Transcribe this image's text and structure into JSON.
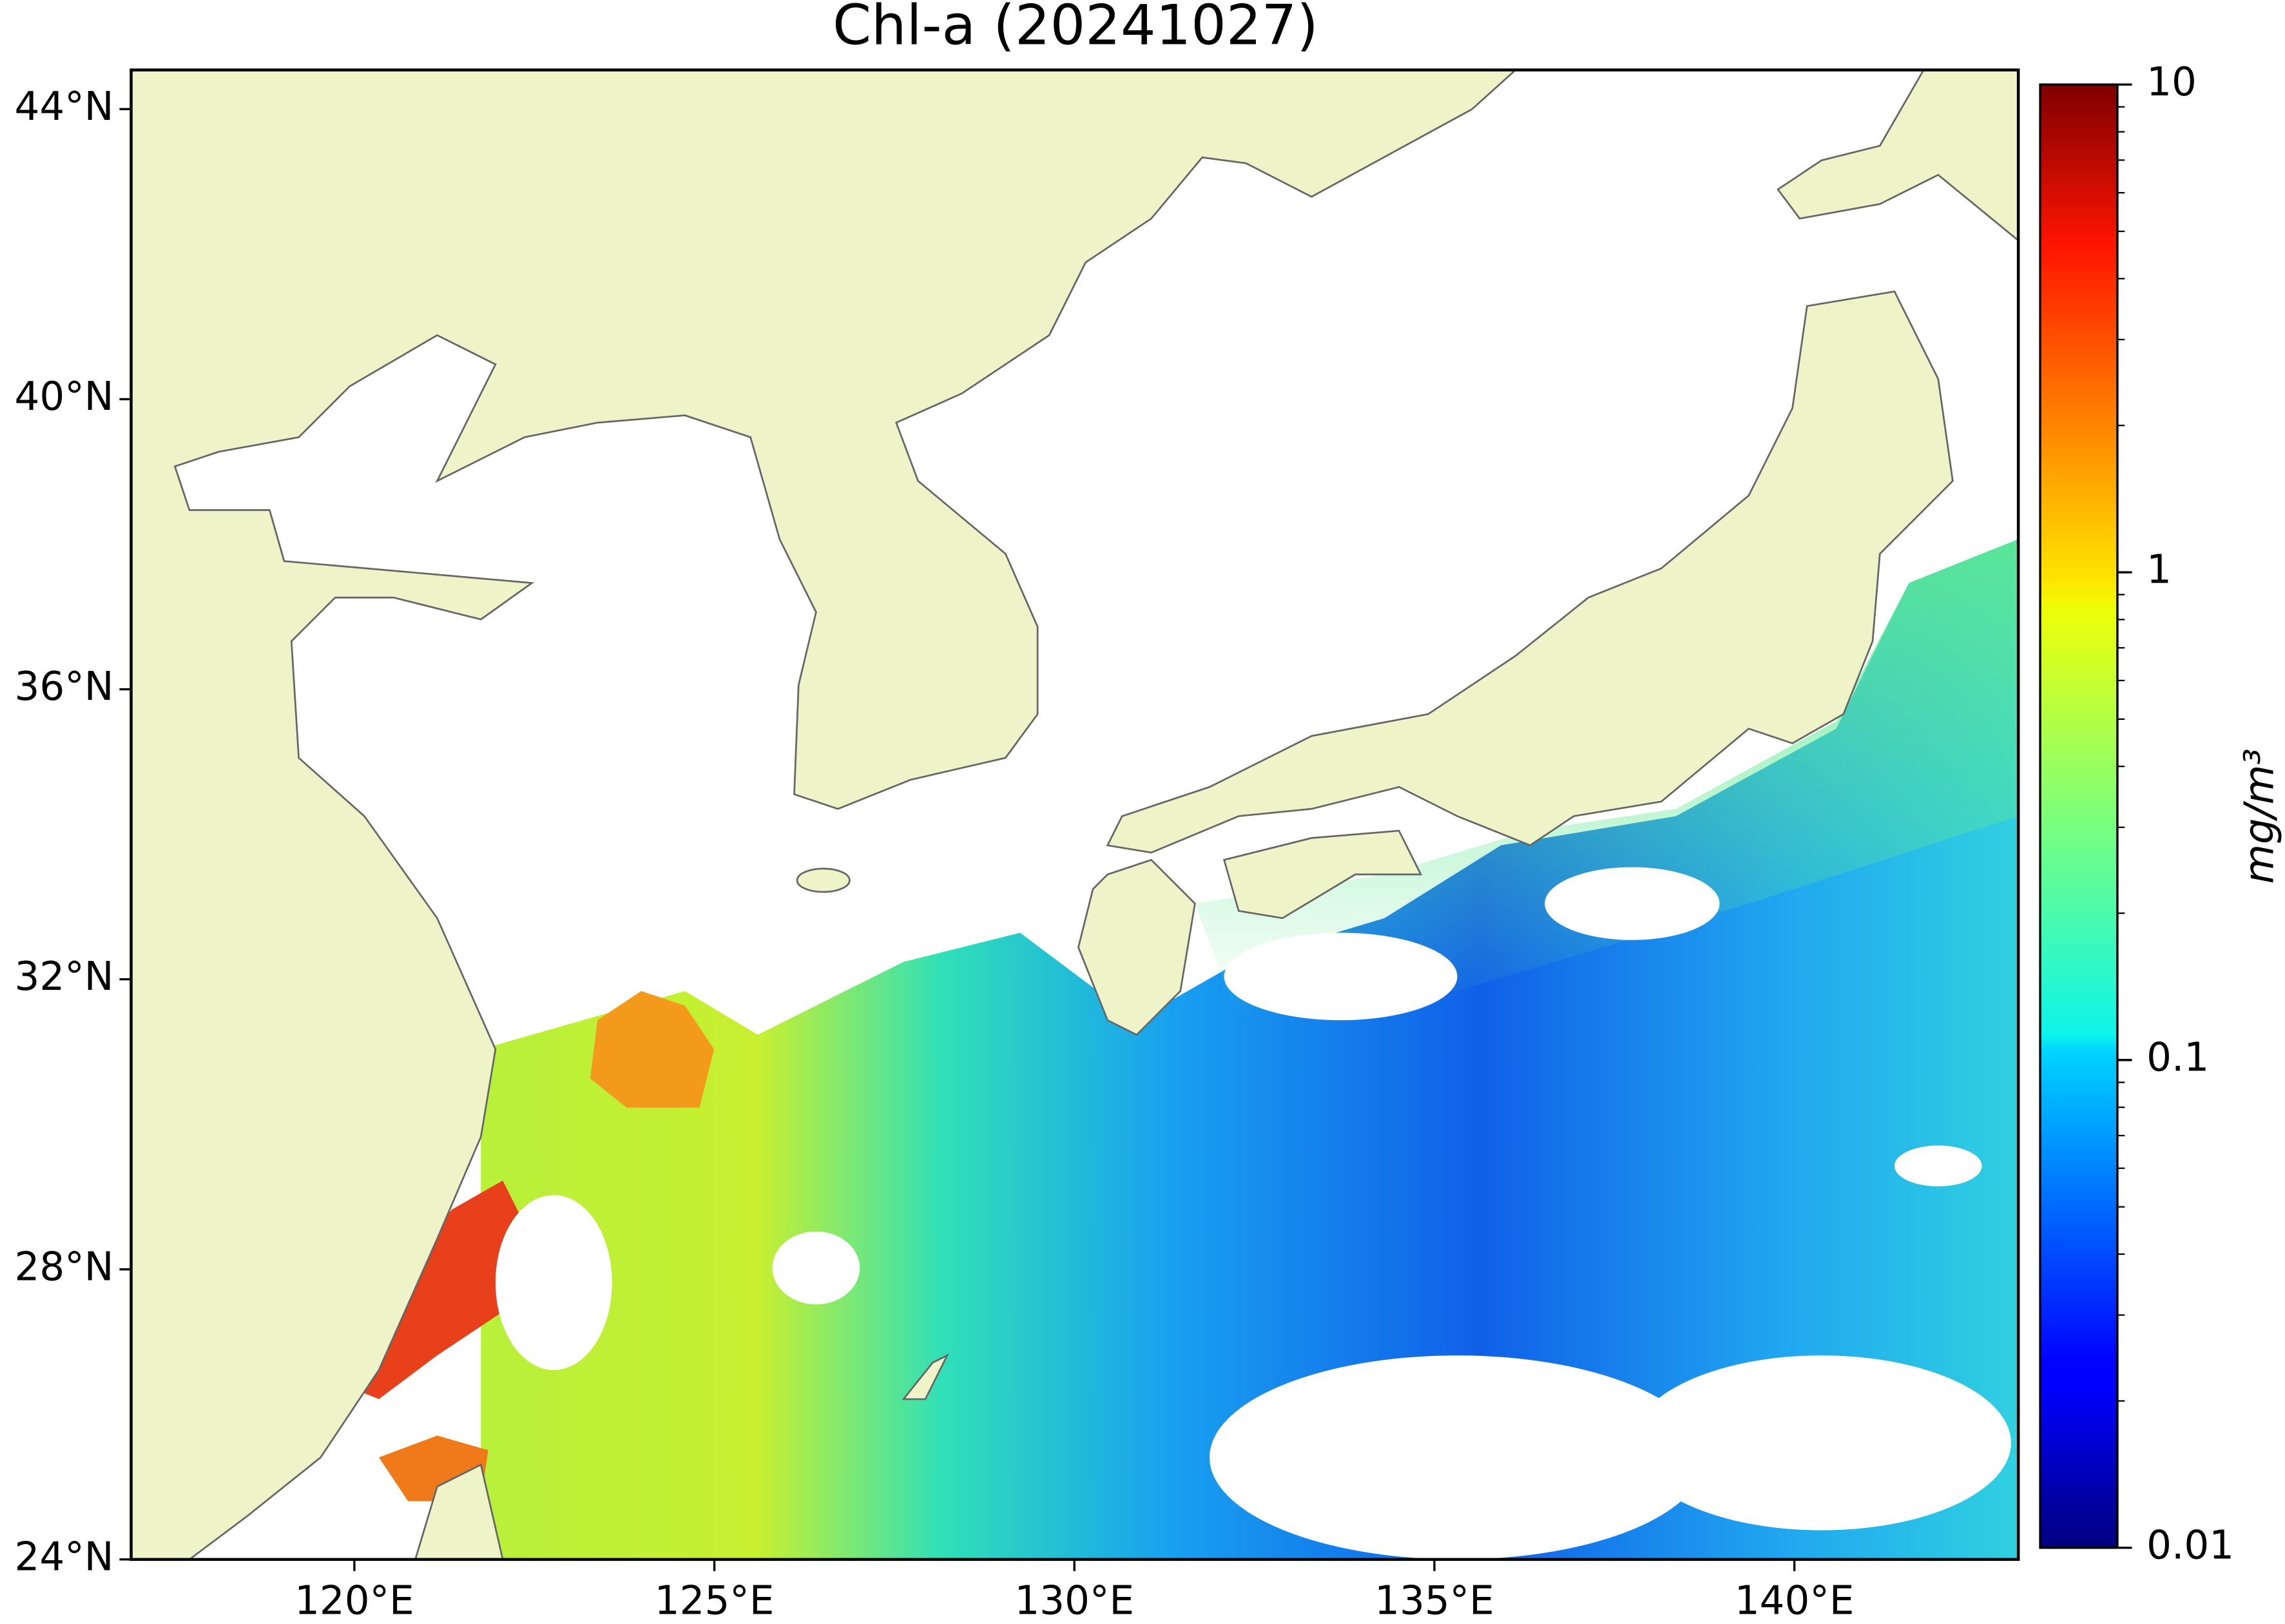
{
  "chart_data": {
    "type": "map",
    "title": "Chl-a (20241027)",
    "xlim": [
      116.9,
      143.11
    ],
    "ylim": [
      24,
      44.54
    ],
    "xticks": [
      {
        "value": 120,
        "label": "120°E"
      },
      {
        "value": 125,
        "label": "125°E"
      },
      {
        "value": 130,
        "label": "130°E"
      },
      {
        "value": 135,
        "label": "135°E"
      },
      {
        "value": 140,
        "label": "140°E"
      }
    ],
    "yticks": [
      {
        "value": 24,
        "label": "24°N"
      },
      {
        "value": 28,
        "label": "28°N"
      },
      {
        "value": 32,
        "label": "32°N"
      },
      {
        "value": 36,
        "label": "36°N"
      },
      {
        "value": 40,
        "label": "40°N"
      },
      {
        "value": 44,
        "label": "44°N"
      }
    ],
    "colorbar": {
      "label": "mg/m³",
      "scale": "log",
      "colormap": "jet",
      "lim": [
        0.01,
        10
      ],
      "ticks": [
        0.01,
        0.1,
        1,
        10
      ]
    }
  }
}
